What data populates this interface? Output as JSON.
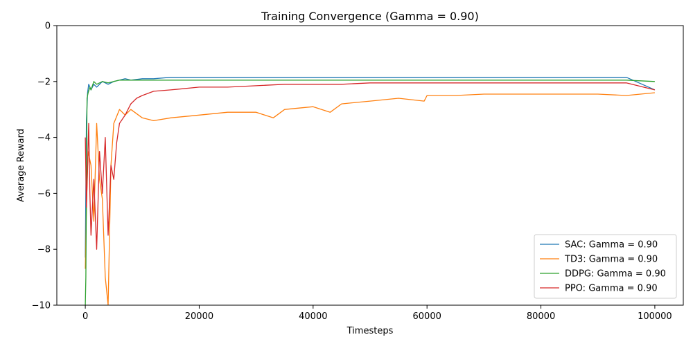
{
  "chart_data": {
    "type": "line",
    "title": "Training Convergence (Gamma = 0.90)",
    "xlabel": "Timesteps",
    "ylabel": "Average Reward",
    "xlim": [
      -5000,
      105000
    ],
    "ylim": [
      -10,
      0
    ],
    "xticks": [
      0,
      20000,
      40000,
      60000,
      80000,
      100000
    ],
    "xtick_labels": [
      "0",
      "20000",
      "40000",
      "60000",
      "80000",
      "100000"
    ],
    "yticks": [
      -10,
      -8,
      -6,
      -4,
      -2,
      0
    ],
    "ytick_labels": [
      "−10",
      "−8",
      "−6",
      "−4",
      "−2",
      "0"
    ],
    "grid": false,
    "legend_position": "lower-right",
    "series": [
      {
        "name": "SAC: Gamma = 0.90",
        "color": "#1f77b4",
        "x": [
          0,
          200,
          400,
          600,
          800,
          1000,
          1500,
          2000,
          3000,
          4000,
          5000,
          6000,
          7000,
          8000,
          10000,
          12000,
          15000,
          20000,
          25000,
          30000,
          35000,
          40000,
          45000,
          50000,
          55000,
          60000,
          65000,
          70000,
          75000,
          80000,
          85000,
          90000,
          95000,
          100000
        ],
        "y": [
          -8.3,
          -3.4,
          -2.4,
          -2.1,
          -2.2,
          -2.3,
          -2.1,
          -2.2,
          -2.0,
          -2.1,
          -2.0,
          -1.95,
          -1.9,
          -1.95,
          -1.9,
          -1.9,
          -1.85,
          -1.85,
          -1.85,
          -1.85,
          -1.85,
          -1.85,
          -1.85,
          -1.85,
          -1.85,
          -1.85,
          -1.85,
          -1.85,
          -1.85,
          -1.85,
          -1.85,
          -1.85,
          -1.85,
          -2.3
        ]
      },
      {
        "name": "TD3: Gamma = 0.90",
        "color": "#ff7f0e",
        "x": [
          0,
          200,
          500,
          1000,
          1500,
          2000,
          2500,
          3000,
          3500,
          4000,
          4500,
          5000,
          6000,
          7000,
          8000,
          10000,
          12000,
          15000,
          20000,
          25000,
          30000,
          33000,
          35000,
          40000,
          43000,
          45000,
          50000,
          55000,
          59500,
          60000,
          65000,
          70000,
          75000,
          80000,
          85000,
          90000,
          95000,
          100000
        ],
        "y": [
          -8.7,
          -6.5,
          -4.5,
          -5.0,
          -7.0,
          -3.5,
          -5.5,
          -6.2,
          -9.0,
          -10.0,
          -5.0,
          -3.5,
          -3.0,
          -3.2,
          -3.0,
          -3.3,
          -3.4,
          -3.3,
          -3.2,
          -3.1,
          -3.1,
          -3.3,
          -3.0,
          -2.9,
          -3.1,
          -2.8,
          -2.7,
          -2.6,
          -2.7,
          -2.5,
          -2.5,
          -2.45,
          -2.45,
          -2.45,
          -2.45,
          -2.45,
          -2.5,
          -2.4
        ]
      },
      {
        "name": "DDPG: Gamma = 0.90",
        "color": "#2ca02c",
        "x": [
          0,
          100,
          300,
          500,
          800,
          1000,
          1500,
          2000,
          3000,
          4000,
          5000,
          6000,
          8000,
          10000,
          15000,
          20000,
          25000,
          30000,
          35000,
          40000,
          45000,
          50000,
          55000,
          60000,
          65000,
          70000,
          75000,
          80000,
          85000,
          90000,
          95000,
          100000
        ],
        "y": [
          -10.0,
          -9.0,
          -2.6,
          -2.4,
          -2.2,
          -2.3,
          -2.0,
          -2.1,
          -2.0,
          -2.05,
          -2.0,
          -1.95,
          -1.95,
          -1.95,
          -1.95,
          -1.95,
          -1.95,
          -1.95,
          -1.95,
          -1.95,
          -1.95,
          -1.95,
          -1.95,
          -1.95,
          -1.95,
          -1.95,
          -1.95,
          -1.95,
          -1.95,
          -1.95,
          -1.95,
          -2.0
        ]
      },
      {
        "name": "PPO: Gamma = 0.90",
        "color": "#d62728",
        "x": [
          0,
          200,
          400,
          600,
          800,
          1000,
          1500,
          2000,
          2500,
          3000,
          3500,
          4000,
          4500,
          5000,
          5500,
          6000,
          7000,
          8000,
          9000,
          10000,
          12000,
          15000,
          20000,
          25000,
          30000,
          35000,
          40000,
          45000,
          50000,
          55000,
          60000,
          65000,
          70000,
          75000,
          80000,
          85000,
          90000,
          95000,
          100000
        ],
        "y": [
          -4.0,
          -6.5,
          -5.0,
          -3.5,
          -6.0,
          -7.5,
          -5.5,
          -8.0,
          -4.5,
          -6.0,
          -4.0,
          -7.5,
          -5.0,
          -5.5,
          -4.2,
          -3.5,
          -3.2,
          -2.8,
          -2.6,
          -2.5,
          -2.35,
          -2.3,
          -2.2,
          -2.2,
          -2.15,
          -2.1,
          -2.1,
          -2.1,
          -2.05,
          -2.05,
          -2.05,
          -2.05,
          -2.05,
          -2.05,
          -2.05,
          -2.05,
          -2.05,
          -2.05,
          -2.3
        ]
      }
    ]
  }
}
